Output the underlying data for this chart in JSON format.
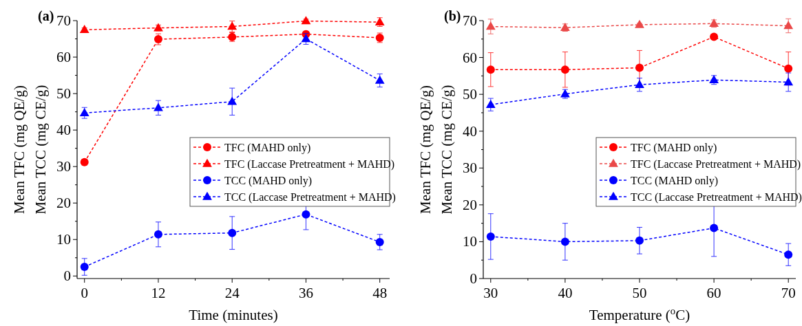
{
  "chart_data": [
    {
      "type": "line",
      "title": "(a)",
      "xlabel": "Time (minutes)",
      "ylabel": "Mean TFC (mg QE/g)\nMean TCC (mg CE/g)",
      "xlim": [
        -1.2,
        49.6
      ],
      "ylim": [
        -0.7,
        70
      ],
      "xticks": [
        0,
        {
          "value": 6,
          "label": null
        },
        12,
        {
          "value": 18,
          "label": null
        },
        24,
        {
          "value": 30,
          "label": null
        },
        36,
        {
          "value": 42,
          "label": null
        },
        48
      ],
      "yticks": [
        0,
        {
          "value": 5,
          "label": null
        },
        10,
        {
          "value": 15,
          "label": null
        },
        20,
        {
          "value": 25,
          "label": null
        },
        30,
        {
          "value": 35,
          "label": null
        },
        40,
        {
          "value": 45,
          "label": null
        },
        50,
        {
          "value": 55,
          "label": null
        },
        60,
        {
          "value": 65,
          "label": null
        },
        70
      ],
      "x": [
        0,
        12,
        24,
        36,
        48
      ],
      "legend": "right",
      "grid": false,
      "line_style": "dashed",
      "series": [
        {
          "name": "TFC (MAHD only)",
          "color": "#ff0000",
          "marker": "circle",
          "values": [
            31.2,
            64.9,
            65.5,
            66.3,
            65.3
          ],
          "errors": [
            0.8,
            1.5,
            1.2,
            0.8,
            1.3
          ]
        },
        {
          "name": "TFC (Laccase Pretreatment + MAHD)",
          "color": "#ff0000",
          "marker": "triangle",
          "values": [
            67.5,
            68.0,
            68.4,
            69.9,
            69.6
          ],
          "errors": [
            0.5,
            0.8,
            1.5,
            0.5,
            1.2
          ]
        },
        {
          "name": "TCC (MAHD only)",
          "color": "#0000ff",
          "marker": "circle",
          "values": [
            2.5,
            11.4,
            11.8,
            16.9,
            9.3
          ],
          "errors": [
            2.3,
            3.4,
            4.5,
            4.2,
            2.1
          ]
        },
        {
          "name": "TCC (Laccase Pretreatment + MAHD)",
          "color": "#0000ff",
          "marker": "triangle",
          "values": [
            44.7,
            46.1,
            47.8,
            65.0,
            53.6
          ],
          "errors": [
            1.5,
            2.0,
            3.7,
            1.5,
            1.8
          ]
        }
      ]
    },
    {
      "type": "line",
      "title": "(b)",
      "xlabel": "Temperature ($^{o}$C)",
      "ylabel": "Mean TFC (mg QE/g)\nMean TCC (mg CE/g)",
      "xlim": [
        29,
        71
      ],
      "ylim": [
        0,
        70
      ],
      "xticks": [
        30,
        {
          "value": 35,
          "label": null
        },
        40,
        {
          "value": 45,
          "label": null
        },
        50,
        {
          "value": 55,
          "label": null
        },
        60,
        {
          "value": 65,
          "label": null
        },
        70
      ],
      "yticks": [
        0,
        {
          "value": 5,
          "label": null
        },
        10,
        {
          "value": 15,
          "label": null
        },
        20,
        {
          "value": 25,
          "label": null
        },
        30,
        {
          "value": 35,
          "label": null
        },
        40,
        {
          "value": 45,
          "label": null
        },
        50,
        {
          "value": 55,
          "label": null
        },
        60,
        {
          "value": 65,
          "label": null
        },
        70
      ],
      "x": [
        30,
        40,
        50,
        60,
        70
      ],
      "legend": "right",
      "grid": false,
      "line_style": "dashed",
      "series": [
        {
          "name": "TFC (MAHD only)",
          "color": "#ff0000",
          "marker": "circle",
          "values": [
            56.7,
            56.7,
            57.2,
            65.6,
            57.0
          ],
          "errors": [
            4.6,
            4.8,
            4.7,
            0.5,
            4.5
          ]
        },
        {
          "name": "TFC (Laccase Pretreatment + MAHD)",
          "color": "#ea4848",
          "marker": "triangle",
          "values": [
            68.4,
            68.1,
            68.9,
            69.2,
            68.6
          ],
          "errors": [
            2.0,
            1.0,
            0.4,
            1.0,
            1.9
          ]
        },
        {
          "name": "TCC (MAHD only)",
          "color": "#0000ff",
          "marker": "circle",
          "values": [
            11.4,
            10.0,
            10.3,
            13.7,
            6.5
          ],
          "errors": [
            6.2,
            5.0,
            3.6,
            7.7,
            3.0
          ]
        },
        {
          "name": "TCC (Laccase Pretreatment + MAHD)",
          "color": "#0000ff",
          "marker": "triangle",
          "values": [
            47.2,
            50.1,
            52.6,
            53.9,
            53.3
          ],
          "errors": [
            1.7,
            1.2,
            1.8,
            1.2,
            2.5
          ]
        }
      ]
    }
  ]
}
